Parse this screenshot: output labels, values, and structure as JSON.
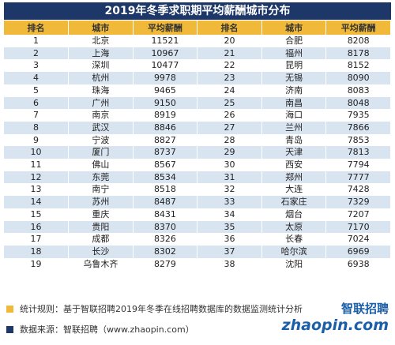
{
  "title": "2019年冬季求职期平均薪酬城市分布",
  "table": {
    "headers": [
      "排名",
      "城市",
      "平均薪酬",
      "排名",
      "城市",
      "平均薪酬"
    ],
    "rows": [
      [
        1,
        "北京",
        11521,
        20,
        "合肥",
        8208
      ],
      [
        2,
        "上海",
        10967,
        21,
        "福州",
        8178
      ],
      [
        3,
        "深圳",
        10477,
        22,
        "昆明",
        8152
      ],
      [
        4,
        "杭州",
        9978,
        23,
        "无锡",
        8090
      ],
      [
        5,
        "珠海",
        9465,
        24,
        "济南",
        8083
      ],
      [
        6,
        "广州",
        9150,
        25,
        "南昌",
        8048
      ],
      [
        7,
        "南京",
        8919,
        26,
        "海口",
        7935
      ],
      [
        8,
        "武汉",
        8846,
        27,
        "兰州",
        7866
      ],
      [
        9,
        "宁波",
        8827,
        28,
        "青岛",
        7853
      ],
      [
        10,
        "厦门",
        8737,
        29,
        "天津",
        7813
      ],
      [
        11,
        "佛山",
        8567,
        30,
        "西安",
        7794
      ],
      [
        12,
        "东莞",
        8534,
        31,
        "郑州",
        7777
      ],
      [
        13,
        "南宁",
        8518,
        32,
        "大连",
        7428
      ],
      [
        14,
        "苏州",
        8487,
        33,
        "石家庄",
        7329
      ],
      [
        15,
        "重庆",
        8431,
        34,
        "烟台",
        7207
      ],
      [
        16,
        "贵阳",
        8370,
        35,
        "太原",
        7170
      ],
      [
        17,
        "成都",
        8326,
        36,
        "长春",
        7024
      ],
      [
        18,
        "长沙",
        8302,
        37,
        "哈尔滨",
        6969
      ],
      [
        19,
        "乌鲁木齐",
        8279,
        38,
        "沈阳",
        6938
      ]
    ]
  },
  "notes": [
    "统计规则：基于智联招聘2019年冬季在线招聘数据库的数据监测统计分析",
    "数据来源：智联招聘（www.zhaopin.com）"
  ],
  "logo": {
    "name": "智联招聘",
    "site": "zhaopin.com"
  }
}
